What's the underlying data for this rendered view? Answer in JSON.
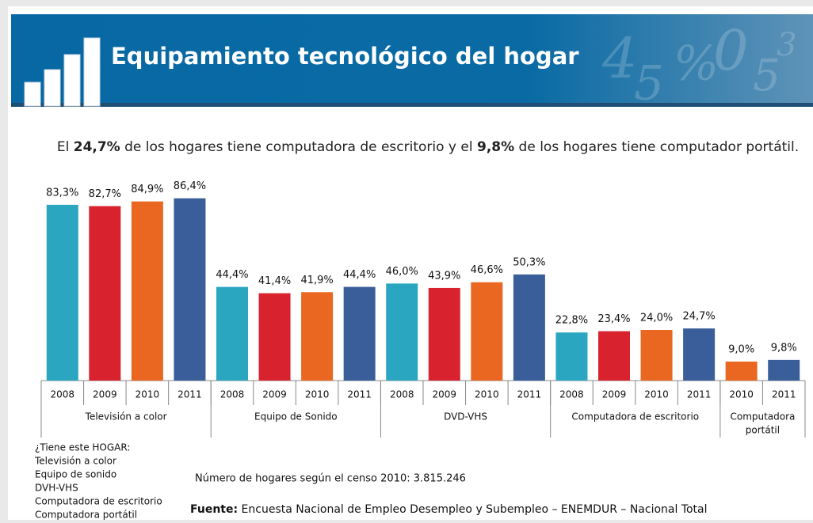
{
  "header": {
    "title": "Equipamiento tecnológico del hogar"
  },
  "subtitle": [
    {
      "text": "El ",
      "bold": false
    },
    {
      "text": "24,7%",
      "bold": true
    },
    {
      "text": " de los hogares tiene computadora de escritorio y el ",
      "bold": false
    },
    {
      "text": "9,8%",
      "bold": true
    },
    {
      "text": " de los hogares tiene computador portátil.",
      "bold": false
    }
  ],
  "chart_data": {
    "type": "bar",
    "ylim": [
      0,
      90
    ],
    "groups": [
      {
        "name": "Televisión a color",
        "categories": [
          "2008",
          "2009",
          "2010",
          "2011"
        ],
        "values": [
          83.3,
          82.7,
          84.9,
          86.4
        ],
        "value_labels": [
          "83,3%",
          "82,7%",
          "84,9%",
          "86,4%"
        ],
        "colors": [
          "#2ba6c0",
          "#d8232f",
          "#ea6721",
          "#3a5e9a"
        ]
      },
      {
        "name": "Equipo de Sonido",
        "categories": [
          "2008",
          "2009",
          "2010",
          "2011"
        ],
        "values": [
          44.4,
          41.4,
          41.9,
          44.4
        ],
        "value_labels": [
          "44,4%",
          "41,4%",
          "41,9%",
          "44,4%"
        ],
        "colors": [
          "#2ba6c0",
          "#d8232f",
          "#ea6721",
          "#3a5e9a"
        ]
      },
      {
        "name": "DVD-VHS",
        "categories": [
          "2008",
          "2009",
          "2010",
          "2011"
        ],
        "values": [
          46.0,
          43.9,
          46.6,
          50.3
        ],
        "value_labels": [
          "46,0%",
          "43,9%",
          "46,6%",
          "50,3%"
        ],
        "colors": [
          "#2ba6c0",
          "#d8232f",
          "#ea6721",
          "#3a5e9a"
        ]
      },
      {
        "name": "Computadora de escritorio",
        "categories": [
          "2008",
          "2009",
          "2010",
          "2011"
        ],
        "values": [
          22.8,
          23.4,
          24.0,
          24.7
        ],
        "value_labels": [
          "22,8%",
          "23,4%",
          "24,0%",
          "24,7%"
        ],
        "colors": [
          "#2ba6c0",
          "#d8232f",
          "#ea6721",
          "#3a5e9a"
        ]
      },
      {
        "name": [
          "Computadora",
          "portátil"
        ],
        "categories": [
          "2010",
          "2011"
        ],
        "values": [
          9.0,
          9.8
        ],
        "value_labels": [
          "9,0%",
          "9,8%"
        ],
        "colors": [
          "#ea6721",
          "#3a5e9a"
        ]
      }
    ]
  },
  "notes": {
    "question": [
      "¿Tiene este HOGAR:",
      "Televisión a color",
      "Equipo de sonido",
      "DVH-VHS",
      "Computadora de escritorio",
      "Computadora portátil"
    ],
    "households": "Número de hogares según  el censo 2010:  3.815.246",
    "source_label": "Fuente:",
    "source": " Encuesta Nacional de Empleo Desempleo y Subempleo – ENEMDUR – Nacional  Total"
  }
}
